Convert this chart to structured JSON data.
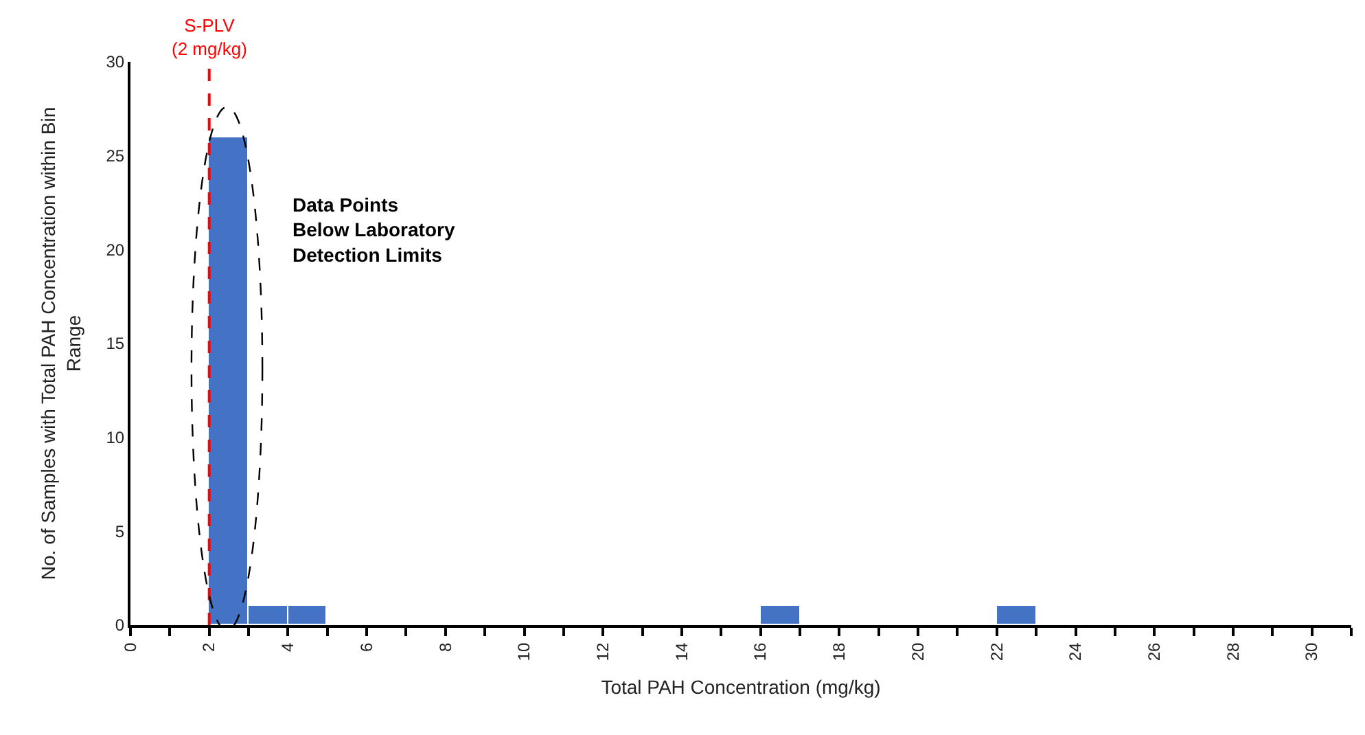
{
  "chart_data": {
    "type": "histogram",
    "xlabel": "Total PAH Concentration (mg/kg)",
    "ylabel": "No. of Samples with Total PAH Concentration within Bin Range",
    "bins": [
      2,
      3,
      4,
      5,
      6,
      7,
      8,
      9,
      10,
      11,
      12,
      13,
      14,
      15,
      16,
      17,
      18,
      19,
      20,
      21,
      22,
      23
    ],
    "values": [
      26,
      1,
      1,
      0,
      0,
      0,
      0,
      0,
      0,
      0,
      0,
      0,
      0,
      0,
      1,
      0,
      0,
      0,
      0,
      0,
      1
    ],
    "color": "#4472c4",
    "xlim": [
      0,
      31
    ],
    "xticks": [
      0,
      {
        "value": 1,
        "label": null
      },
      2,
      {
        "value": 3,
        "label": null
      },
      4,
      {
        "value": 5,
        "label": null
      },
      6,
      {
        "value": 7,
        "label": null
      },
      8,
      {
        "value": 9,
        "label": null
      },
      10,
      {
        "value": 11,
        "label": null
      },
      12,
      {
        "value": 13,
        "label": null
      },
      14,
      {
        "value": 15,
        "label": null
      },
      16,
      {
        "value": 17,
        "label": null
      },
      18,
      {
        "value": 19,
        "label": null
      },
      20,
      {
        "value": 21,
        "label": null
      },
      22,
      {
        "value": 23,
        "label": null
      },
      24,
      {
        "value": 25,
        "label": null
      },
      26,
      {
        "value": 27,
        "label": null
      },
      28,
      {
        "value": 29,
        "label": null
      },
      30,
      {
        "value": 31,
        "label": null
      }
    ],
    "ylim": [
      0,
      30
    ],
    "yticks": [
      0,
      5,
      10,
      15,
      20,
      25,
      30
    ],
    "ref_lines": [
      {
        "axis": "x",
        "value": 2,
        "label": "S-PLV\n(2 mg/kg)",
        "color": "#ff0000",
        "line_style": "dashed"
      }
    ],
    "annotations": [
      "Data Points\nBelow Laboratory\nDetection Limits"
    ]
  }
}
